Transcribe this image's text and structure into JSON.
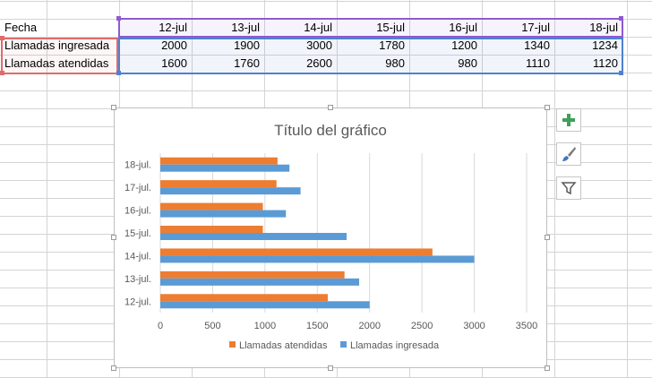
{
  "table": {
    "header_label": "Fecha",
    "dates": [
      "12-jul",
      "13-jul",
      "14-jul",
      "15-jul",
      "16-jul",
      "17-jul",
      "18-jul"
    ],
    "rows": [
      {
        "label": "Llamadas ingresada",
        "values": [
          "2000",
          "1900",
          "3000",
          "1780",
          "1200",
          "1340",
          "1234"
        ]
      },
      {
        "label": "Llamadas atendidas",
        "values": [
          "1600",
          "1760",
          "2600",
          "980",
          "980",
          "1110",
          "1120"
        ]
      }
    ]
  },
  "chart_data": {
    "type": "bar",
    "orientation": "horizontal",
    "title": "Título del gráfico",
    "categories": [
      "12-jul.",
      "13-jul.",
      "14-jul.",
      "15-jul.",
      "16-jul.",
      "17-jul.",
      "18-jul."
    ],
    "series": [
      {
        "name": "Llamadas ingresada",
        "values": [
          2000,
          1900,
          3000,
          1780,
          1200,
          1340,
          1234
        ],
        "color": "#5b9bd5"
      },
      {
        "name": "Llamadas atendidas",
        "values": [
          1600,
          1760,
          2600,
          980,
          980,
          1110,
          1120
        ],
        "color": "#ed7d31"
      }
    ],
    "xlim": [
      0,
      3500
    ],
    "xticks": [
      "0",
      "500",
      "1000",
      "1500",
      "2000",
      "2500",
      "3000",
      "3500"
    ],
    "grid": true,
    "legend_position": "bottom",
    "legend_order": [
      "Llamadas atendidas",
      "Llamadas ingresada"
    ]
  },
  "chart_buttons": [
    {
      "name": "chart-elements-button",
      "icon": "plus-icon"
    },
    {
      "name": "chart-styles-button",
      "icon": "brush-icon"
    },
    {
      "name": "chart-filters-button",
      "icon": "filter-icon"
    }
  ]
}
